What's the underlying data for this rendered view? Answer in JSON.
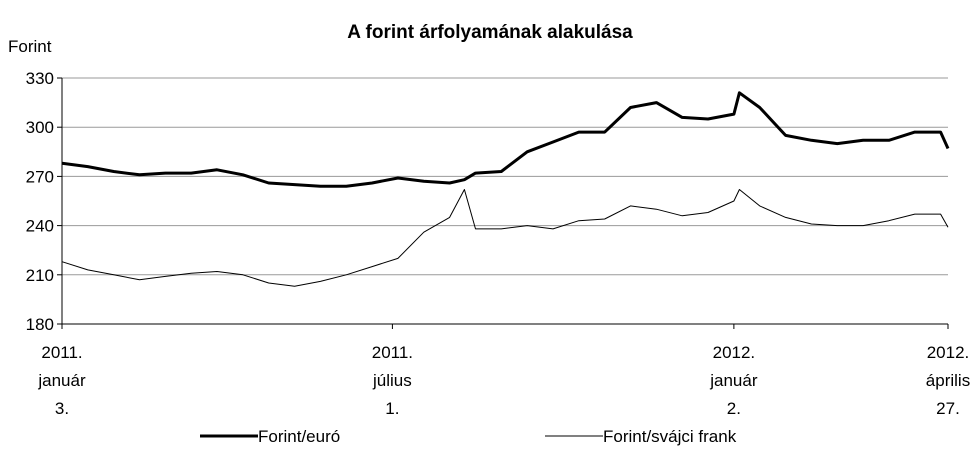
{
  "chart_data": {
    "type": "line",
    "title": "A forint árfolyamának alakulása",
    "y_label": "Forint",
    "x": [
      "2011-01-03",
      "2011-01-17",
      "2011-01-31",
      "2011-02-14",
      "2011-02-28",
      "2011-03-14",
      "2011-03-28",
      "2011-04-11",
      "2011-04-25",
      "2011-05-09",
      "2011-05-23",
      "2011-06-06",
      "2011-06-20",
      "2011-07-04",
      "2011-07-18",
      "2011-08-01",
      "2011-08-09",
      "2011-08-15",
      "2011-08-29",
      "2011-09-12",
      "2011-09-26",
      "2011-10-10",
      "2011-10-24",
      "2011-11-07",
      "2011-11-21",
      "2011-12-05",
      "2011-12-19",
      "2012-01-02",
      "2012-01-05",
      "2012-01-16",
      "2012-01-30",
      "2012-02-13",
      "2012-02-27",
      "2012-03-12",
      "2012-03-26",
      "2012-04-09",
      "2012-04-23",
      "2012-04-27"
    ],
    "series": [
      {
        "name": "Forint/euró",
        "color": "#000000",
        "width": 3,
        "values": [
          278,
          276,
          273,
          271,
          272,
          272,
          274,
          271,
          266,
          265,
          264,
          264,
          266,
          269,
          267,
          266,
          268,
          272,
          273,
          285,
          291,
          297,
          297,
          312,
          315,
          306,
          305,
          308,
          321,
          312,
          295,
          292,
          290,
          292,
          292,
          297,
          297,
          287
        ]
      },
      {
        "name": "Forint/svájci frank",
        "color": "#000000",
        "width": 1,
        "values": [
          218,
          213,
          210,
          207,
          209,
          211,
          212,
          210,
          205,
          203,
          206,
          210,
          215,
          220,
          236,
          245,
          262,
          238,
          238,
          240,
          238,
          243,
          244,
          252,
          250,
          246,
          248,
          255,
          262,
          252,
          245,
          241,
          240,
          240,
          243,
          247,
          247,
          239
        ]
      }
    ],
    "xlim": [
      "2011-01-03",
      "2012-04-27"
    ],
    "xticks": [
      {
        "value": "2011-01-03",
        "label": "2011. január 3."
      },
      {
        "value": "2011-07-01",
        "label": "2011. július 1."
      },
      {
        "value": "2012-01-02",
        "label": "2012. január 2."
      },
      {
        "value": "2012-04-27",
        "label": "2012. április 27."
      }
    ],
    "ylim": [
      180,
      330
    ],
    "yticks": [
      180,
      210,
      240,
      270,
      300,
      330
    ],
    "grid": true,
    "legend": "bottom"
  }
}
